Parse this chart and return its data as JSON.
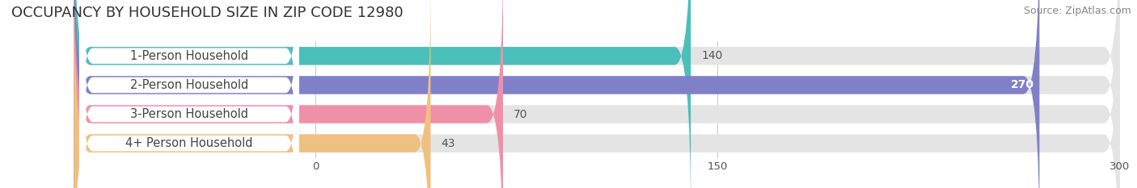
{
  "title": "OCCUPANCY BY HOUSEHOLD SIZE IN ZIP CODE 12980",
  "source": "Source: ZipAtlas.com",
  "categories": [
    "1-Person Household",
    "2-Person Household",
    "3-Person Household",
    "4+ Person Household"
  ],
  "values": [
    140,
    270,
    70,
    43
  ],
  "bar_colors": [
    "#4BBFBA",
    "#8080C8",
    "#F090A8",
    "#F0C080"
  ],
  "bg_color": "#f0f0f0",
  "xlim": [
    -90,
    300
  ],
  "xtick_vals": [
    0,
    150,
    300
  ],
  "title_fontsize": 13,
  "source_fontsize": 9,
  "label_fontsize": 10.5,
  "value_fontsize": 10,
  "bar_height": 0.62,
  "bar_gap": 0.38
}
